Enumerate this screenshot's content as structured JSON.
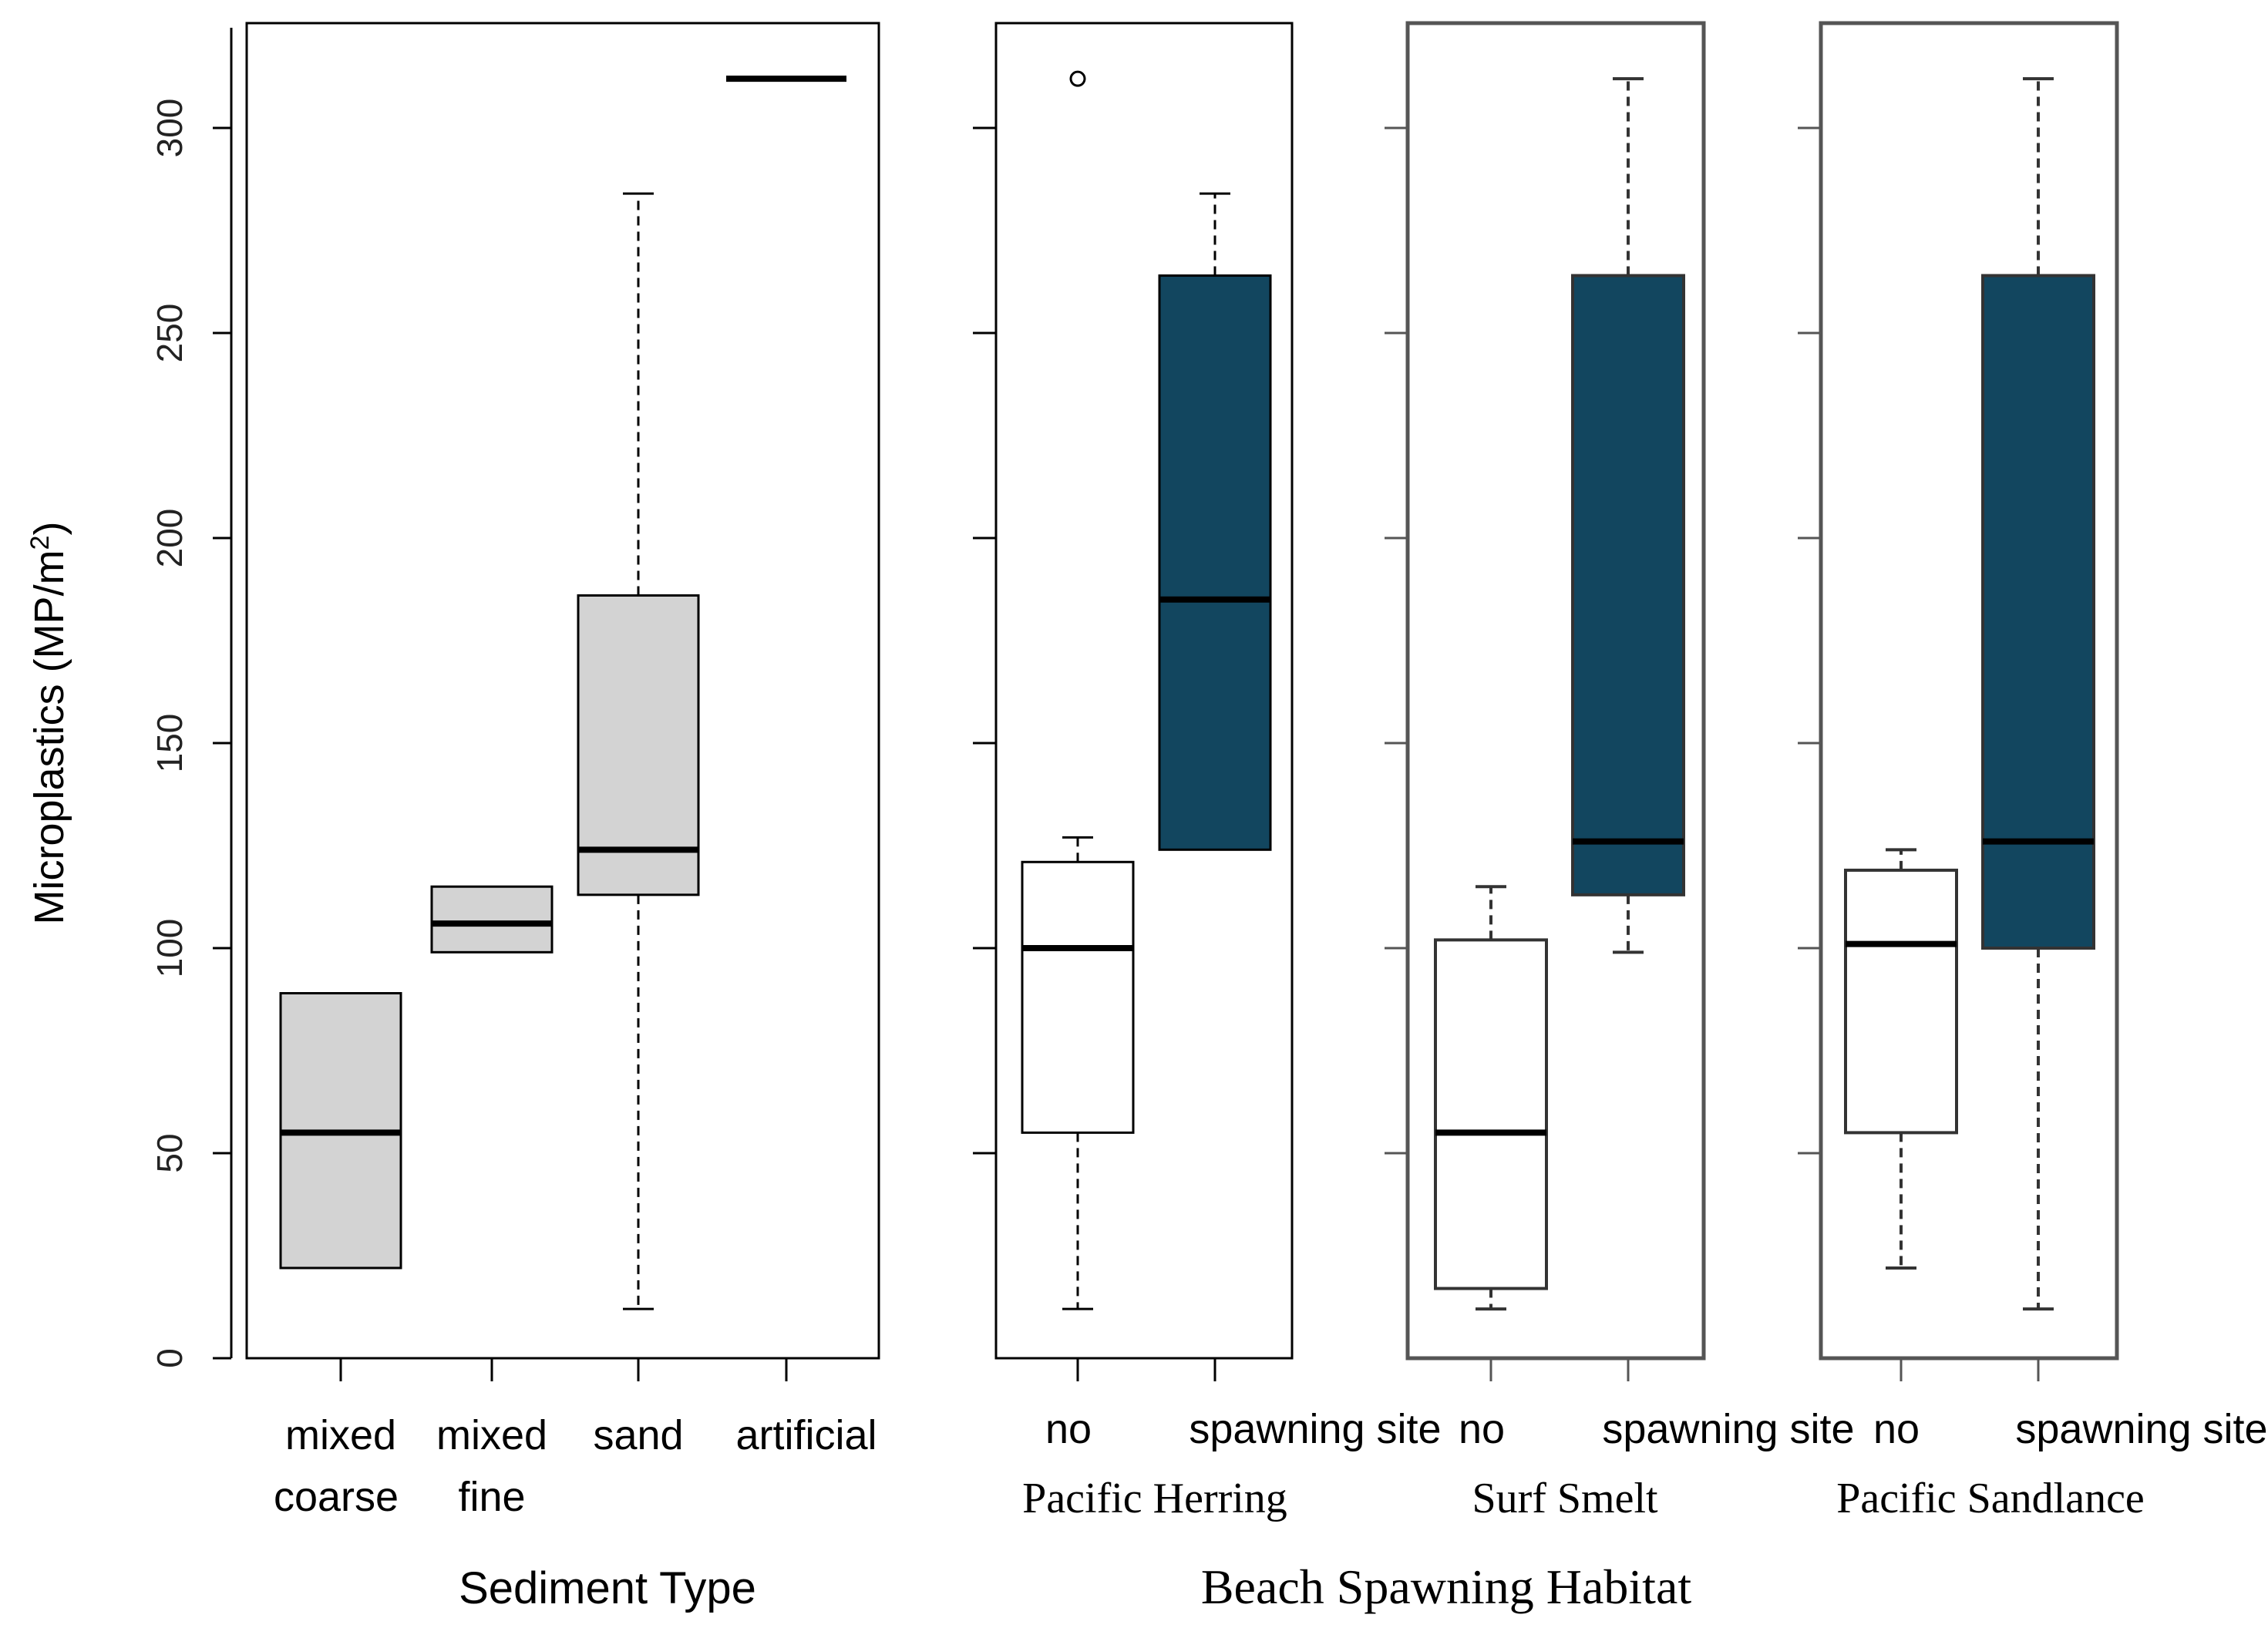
{
  "y_axis": {
    "label_main": "Microplastics (MP/m",
    "label_sup": "2",
    "label_close": ")",
    "ticks": [
      0,
      50,
      100,
      150,
      200,
      250,
      300
    ],
    "ylim": [
      0,
      325
    ]
  },
  "colors": {
    "sediment_fill": "#d3d3d3",
    "no_fill": "#ffffff",
    "spawning_fill": "#12465f",
    "frame": "#000000"
  },
  "chart_data": [
    {
      "type": "box",
      "panel": "sediment",
      "xlabel": "Sediment Type",
      "ylabel": "Microplastics (MP/m2)",
      "ylim": [
        0,
        325
      ],
      "categories": [
        {
          "line1": "mixed",
          "line2": "coarse",
          "q1": 22,
          "median": 55,
          "q3": 89,
          "whisker_low": 22,
          "whisker_high": 89,
          "outliers": []
        },
        {
          "line1": "mixed",
          "line2": "fine",
          "q1": 99,
          "median": 106,
          "q3": 115,
          "whisker_low": 99,
          "whisker_high": 115,
          "outliers": []
        },
        {
          "line1": "sand",
          "line2": "",
          "q1": 113,
          "median": 124,
          "q3": 186,
          "whisker_low": 12,
          "whisker_high": 284,
          "outliers": []
        },
        {
          "line1": "artificial",
          "line2": "",
          "q1": 312,
          "median": 312,
          "q3": 312,
          "whisker_low": 312,
          "whisker_high": 312,
          "outliers": []
        }
      ]
    },
    {
      "type": "box",
      "panel": "herring",
      "species": "Pacific Herring",
      "categories": [
        {
          "label": "no",
          "q1": 55,
          "median": 100,
          "q3": 121,
          "whisker_low": 12,
          "whisker_high": 127,
          "outliers": [
            312
          ]
        },
        {
          "label": "spawning site",
          "q1": 124,
          "median": 185,
          "q3": 264,
          "whisker_low": 124,
          "whisker_high": 284,
          "outliers": []
        }
      ]
    },
    {
      "type": "box",
      "panel": "smelt",
      "species": "Surf Smelt",
      "categories": [
        {
          "label": "no",
          "q1": 17,
          "median": 55,
          "q3": 102,
          "whisker_low": 12,
          "whisker_high": 115,
          "outliers": []
        },
        {
          "label": "spawning site",
          "q1": 113,
          "median": 126,
          "q3": 264,
          "whisker_low": 99,
          "whisker_high": 312,
          "outliers": []
        }
      ]
    },
    {
      "type": "box",
      "panel": "sandlance",
      "species": "Pacific Sandlance",
      "categories": [
        {
          "label": "no",
          "q1": 55,
          "median": 101,
          "q3": 119,
          "whisker_low": 22,
          "whisker_high": 124,
          "outliers": []
        },
        {
          "label": "spawning site",
          "q1": 100,
          "median": 126,
          "q3": 264,
          "whisker_low": 12,
          "whisker_high": 312,
          "outliers": []
        }
      ]
    }
  ],
  "bottom_label": "Beach Spawning Habitat"
}
